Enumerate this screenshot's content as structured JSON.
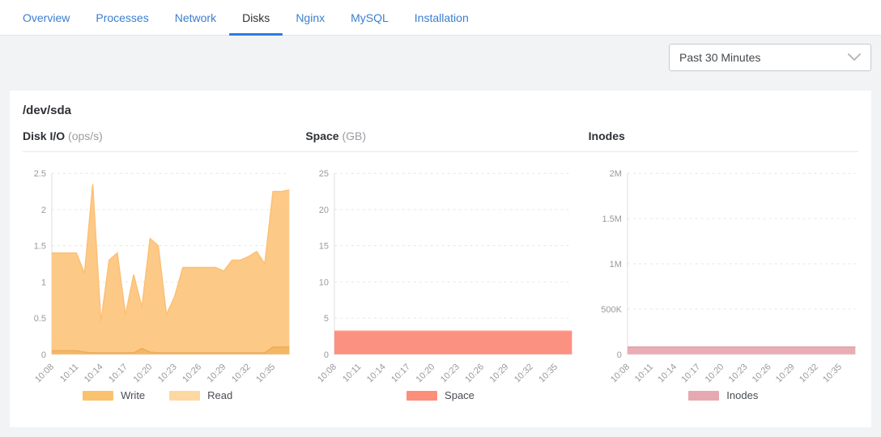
{
  "tabs": [
    {
      "label": "Overview",
      "active": false
    },
    {
      "label": "Processes",
      "active": false
    },
    {
      "label": "Network",
      "active": false
    },
    {
      "label": "Disks",
      "active": true
    },
    {
      "label": "Nginx",
      "active": false
    },
    {
      "label": "MySQL",
      "active": false
    },
    {
      "label": "Installation",
      "active": false
    }
  ],
  "time_range_select": {
    "value": "Past 30 Minutes"
  },
  "panel": {
    "title": "/dev/sda"
  },
  "colors": {
    "tab_link": "#3a7ecf",
    "tab_active_underline": "#2a7de2",
    "axis_label": "#97999d",
    "gridline": "#e5e6e8"
  },
  "chart_data": [
    {
      "type": "area",
      "title": "Disk I/O",
      "title_unit": "(ops/s)",
      "x": [
        "10:08",
        "10:09",
        "10:10",
        "10:11",
        "10:12",
        "10:13",
        "10:14",
        "10:15",
        "10:16",
        "10:17",
        "10:18",
        "10:19",
        "10:20",
        "10:21",
        "10:22",
        "10:23",
        "10:24",
        "10:25",
        "10:26",
        "10:27",
        "10:28",
        "10:29",
        "10:30",
        "10:31",
        "10:32",
        "10:33",
        "10:34",
        "10:35",
        "10:36",
        "10:37"
      ],
      "x_tick_every": 3,
      "ylim": [
        0,
        2.5
      ],
      "yticks": [
        {
          "value": 0,
          "label": "0"
        },
        {
          "value": 0.5,
          "label": "0.5"
        },
        {
          "value": 1,
          "label": "1"
        },
        {
          "value": 1.5,
          "label": "1.5"
        },
        {
          "value": 2,
          "label": "2"
        },
        {
          "value": 2.5,
          "label": "2.5"
        }
      ],
      "axis_gutter": 36,
      "grid": true,
      "legend_position": "bottom",
      "series": [
        {
          "name": "Read",
          "fill": "#fdc987",
          "line": "#fcc075",
          "values": [
            1.4,
            1.4,
            1.4,
            1.4,
            1.12,
            2.35,
            0.45,
            1.3,
            1.4,
            0.55,
            1.1,
            0.65,
            1.6,
            1.5,
            0.55,
            0.8,
            1.2,
            1.2,
            1.2,
            1.2,
            1.2,
            1.15,
            1.3,
            1.3,
            1.35,
            1.42,
            1.25,
            2.25,
            2.25,
            2.27
          ]
        },
        {
          "name": "Write",
          "fill": "#f5b765",
          "line": "#eaad5a",
          "values": [
            0.05,
            0.05,
            0.05,
            0.05,
            0.03,
            0.02,
            0.02,
            0.02,
            0.02,
            0.02,
            0.02,
            0.08,
            0.03,
            0.02,
            0.02,
            0.02,
            0.02,
            0.02,
            0.02,
            0.02,
            0.02,
            0.02,
            0.02,
            0.02,
            0.02,
            0.02,
            0.02,
            0.1,
            0.1,
            0.1
          ]
        }
      ],
      "legend": [
        {
          "label": "Write",
          "color": "#fac26e"
        },
        {
          "label": "Read",
          "color": "#fdd8a0"
        }
      ]
    },
    {
      "type": "area",
      "title": "Space",
      "title_unit": "(GB)",
      "x": [
        "10:08",
        "10:09",
        "10:10",
        "10:11",
        "10:12",
        "10:13",
        "10:14",
        "10:15",
        "10:16",
        "10:17",
        "10:18",
        "10:19",
        "10:20",
        "10:21",
        "10:22",
        "10:23",
        "10:24",
        "10:25",
        "10:26",
        "10:27",
        "10:28",
        "10:29",
        "10:30",
        "10:31",
        "10:32",
        "10:33",
        "10:34",
        "10:35",
        "10:36",
        "10:37"
      ],
      "x_tick_every": 3,
      "ylim": [
        0,
        25
      ],
      "yticks": [
        {
          "value": 0,
          "label": "0"
        },
        {
          "value": 5,
          "label": "5"
        },
        {
          "value": 10,
          "label": "10"
        },
        {
          "value": 15,
          "label": "15"
        },
        {
          "value": 20,
          "label": "20"
        },
        {
          "value": 25,
          "label": "25"
        }
      ],
      "axis_gutter": 36,
      "grid": true,
      "legend_position": "bottom",
      "series": [
        {
          "name": "Space",
          "fill": "#fb9180",
          "line": "#fca294",
          "values": [
            3.2,
            3.2,
            3.2,
            3.2,
            3.2,
            3.2,
            3.2,
            3.2,
            3.2,
            3.2,
            3.2,
            3.2,
            3.2,
            3.2,
            3.2,
            3.2,
            3.2,
            3.2,
            3.2,
            3.2,
            3.2,
            3.2,
            3.2,
            3.2,
            3.2,
            3.2,
            3.2,
            3.2,
            3.2,
            3.2
          ]
        }
      ],
      "legend": [
        {
          "label": "Space",
          "color": "#fb8f79"
        }
      ]
    },
    {
      "type": "area",
      "title": "Inodes",
      "title_unit": "",
      "x": [
        "10:08",
        "10:09",
        "10:10",
        "10:11",
        "10:12",
        "10:13",
        "10:14",
        "10:15",
        "10:16",
        "10:17",
        "10:18",
        "10:19",
        "10:20",
        "10:21",
        "10:22",
        "10:23",
        "10:24",
        "10:25",
        "10:26",
        "10:27",
        "10:28",
        "10:29",
        "10:30",
        "10:31",
        "10:32",
        "10:33",
        "10:34",
        "10:35",
        "10:36",
        "10:37"
      ],
      "x_tick_every": 3,
      "ylim": [
        0,
        2000000
      ],
      "yticks": [
        {
          "value": 0,
          "label": "0"
        },
        {
          "value": 500000,
          "label": "500K"
        },
        {
          "value": 1000000,
          "label": "1M"
        },
        {
          "value": 1500000,
          "label": "1.5M"
        },
        {
          "value": 2000000,
          "label": "2M"
        }
      ],
      "axis_gutter": 48,
      "grid": true,
      "legend_position": "bottom",
      "series": [
        {
          "name": "Inodes",
          "fill": "#e9adb4",
          "line": "#e09ea7",
          "values": [
            80000,
            80000,
            80000,
            80000,
            80000,
            80000,
            80000,
            80000,
            80000,
            80000,
            80000,
            80000,
            80000,
            80000,
            80000,
            80000,
            80000,
            80000,
            80000,
            80000,
            80000,
            80000,
            80000,
            80000,
            80000,
            80000,
            80000,
            80000,
            80000,
            80000
          ]
        }
      ],
      "legend": [
        {
          "label": "Inodes",
          "color": "#e7a9b1"
        }
      ]
    }
  ]
}
